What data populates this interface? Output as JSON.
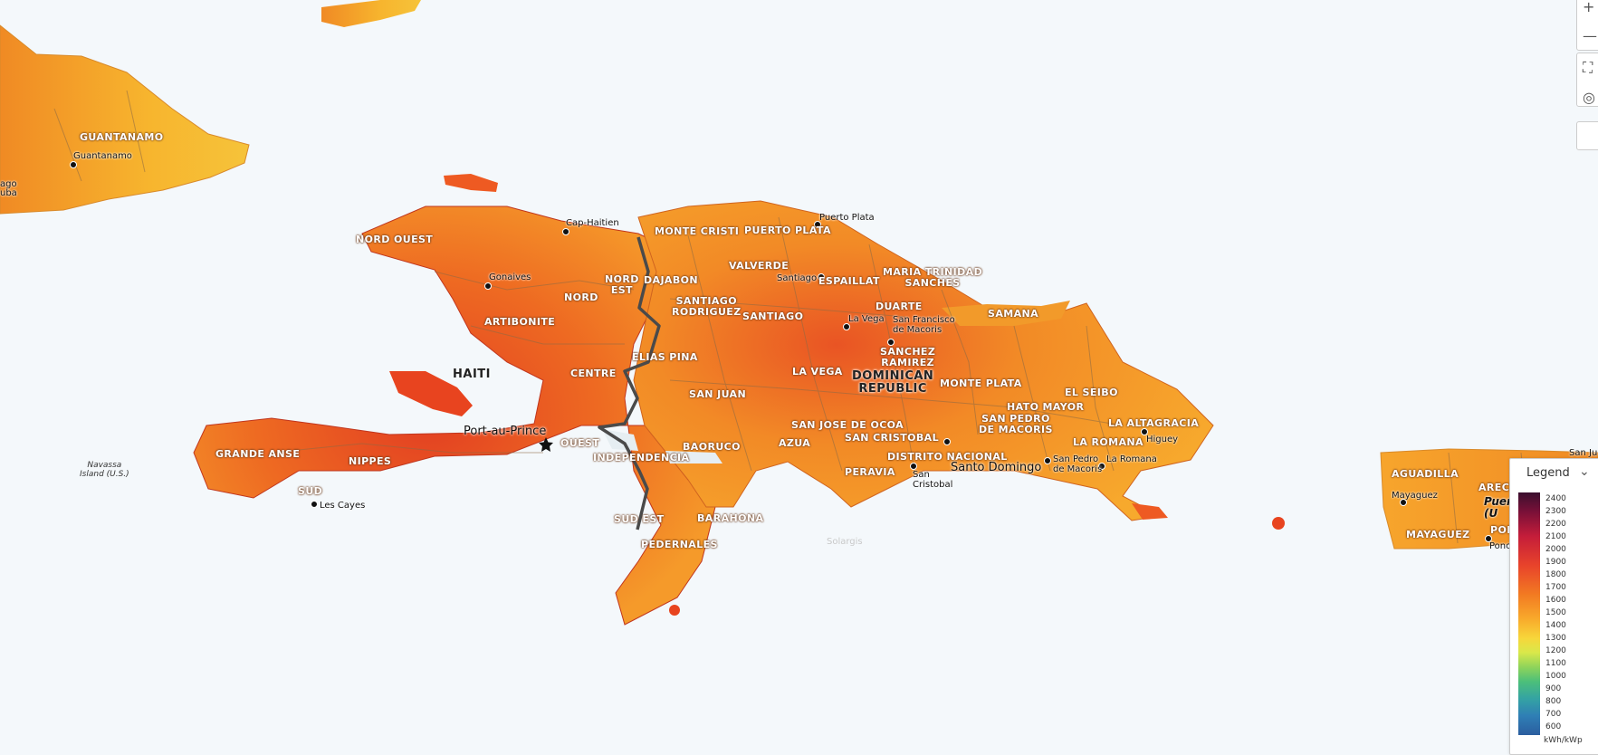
{
  "regions": {
    "guantanamo": "GUANTANAMO",
    "nord_ouest": "NORD OUEST",
    "nord": "NORD",
    "nord_est": "NORD\nEST",
    "artibonite": "ARTIBONITE",
    "centre": "CENTRE",
    "ouest": "OUEST",
    "grande_anse": "GRANDE ANSE",
    "nippes": "NIPPES",
    "sud": "SUD",
    "sud_est": "SUD EST",
    "monte_cristi": "MONTE CRISTI",
    "puerto_plata": "PUERTO PLATA",
    "dajabon": "DAJABON",
    "valverde": "VALVERDE",
    "espaillat": "ESPAILLAT",
    "maria_trinidad": "MARIA TRINIDAD\nSANCHES",
    "santiago_rodriguez": "SANTIAGO\nRODRIGUEZ",
    "santiago": "SANTIAGO",
    "duarte": "DUARTE",
    "samana": "SAMANA",
    "elias_pina": "ELIAS PINA",
    "sanchez_ramirez": "SANCHEZ\nRAMIREZ",
    "la_vega": "LA VEGA",
    "san_juan": "SAN JUAN",
    "monte_plata": "MONTE PLATA",
    "hato_mayor": "HATO MAYOR",
    "el_seibo": "EL SEIBO",
    "san_jose_de_ocoa": "SAN JOSE DE OCOA",
    "san_pedro_de_macoris": "SAN PEDRO\nDE MACORIS",
    "la_altagracia": "LA ALTAGRACIA",
    "san_cristobal": "SAN CRISTOBAL",
    "azua": "AZUA",
    "la_romana": "LA ROMANA",
    "independencia": "INDEPENDENCIA",
    "baoruco": "BAORUCO",
    "distrito_nacional": "DISTRITO NACIONAL",
    "peravia": "PERAVIA",
    "barahona": "BARAHONA",
    "pedernales": "PEDERNALES",
    "aguadilla": "AGUADILLA",
    "arecibo": "ARECIBO",
    "mayaguez": "MAYAGUEZ",
    "ponce_region": "PON"
  },
  "cities": {
    "guantanamo": "Guantanamo",
    "santiago_cuba": "ago",
    "santiago_cuba2": "uba",
    "cap_haitien": "Cap-Haitien",
    "gonaives": "Gonaives",
    "les_cayes": "Les Cayes",
    "puerto_plata": "Puerto Plata",
    "santiago": "Santiago",
    "la_vega": "La Vega",
    "san_francisco": "San Francisco\nde Macoris",
    "san_cristobal": "San\nCristobal",
    "san_pedro": "San Pedro\nde Macoris",
    "la_romana": "La Romana",
    "higuey": "Higuey",
    "mayaguez": "Mayaguez",
    "ponce": "Ponc",
    "san_juan_pr": "San Ju",
    "puerto_rico": "Puer\n(U"
  },
  "capitals": {
    "port_au_prince": "Port-au-Prince",
    "santo_domingo": "Santo Domingo"
  },
  "countries": {
    "haiti": "HAITI",
    "dominican_republic": "DOMINICAN\nREPUBLIC"
  },
  "water": {
    "navassa": "Navassa\nIsland (U.S.)"
  },
  "watermark": "Solargis",
  "legend": {
    "title": "Legend",
    "ticks": [
      "2400",
      "2300",
      "2200",
      "2100",
      "2000",
      "1900",
      "1800",
      "1700",
      "1600",
      "1500",
      "1400",
      "1300",
      "1200",
      "1100",
      "1000",
      "900",
      "800",
      "700",
      "600"
    ],
    "unit": "kWh/kWp",
    "colors": {
      "high": "#3b0f2e",
      "mid": "#f27a22",
      "low": "#2b5e9f"
    }
  },
  "controls": {
    "zoom_in": "+",
    "zoom_out": "—"
  }
}
